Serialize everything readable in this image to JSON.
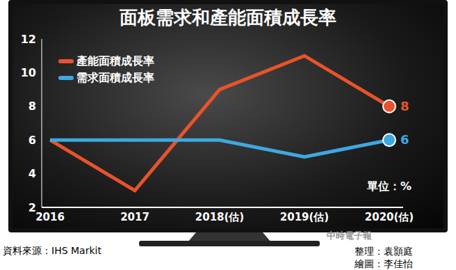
{
  "chart_data": {
    "type": "line",
    "title": "面板需求和產能面積成長率",
    "categories": [
      "2016",
      "2017",
      "2018(估)",
      "2019(估)",
      "2020(估)"
    ],
    "series": [
      {
        "name": "產能面積成長率",
        "color": "#e8532b",
        "values": [
          6,
          3,
          9,
          11,
          8
        ],
        "value_labels": [
          null,
          null,
          null,
          null,
          "8"
        ],
        "marker": "end"
      },
      {
        "name": "需求面積成長率",
        "color": "#3ea8e0",
        "values": [
          6,
          6,
          6,
          5,
          6
        ],
        "value_labels": [
          null,
          null,
          null,
          null,
          "6"
        ],
        "marker": "end"
      }
    ],
    "ylim": [
      2,
      12
    ],
    "yticks": [
      2,
      4,
      6,
      8,
      10,
      12
    ],
    "grid": false,
    "legend": "upper left",
    "data_labels": true,
    "unit_label": "單位：%",
    "source": "資料來源：IHS Markit",
    "credits": [
      "整理：袁顥庭",
      "繪圖：李佳怡"
    ],
    "watermark": "中時電子報"
  }
}
